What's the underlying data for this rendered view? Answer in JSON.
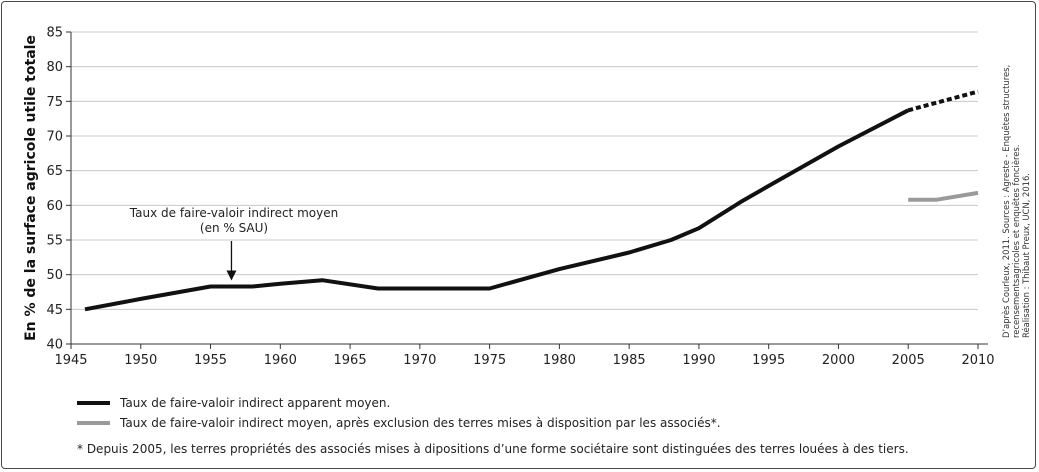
{
  "chart_data": {
    "type": "line",
    "ylabel": "En % de la surface agricole utile totale",
    "xlim": [
      1945,
      2010
    ],
    "ylim": [
      40,
      85
    ],
    "x_ticks": [
      1945,
      1950,
      1955,
      1960,
      1965,
      1970,
      1975,
      1980,
      1985,
      1990,
      1995,
      2000,
      2005,
      2010
    ],
    "y_ticks": [
      40,
      45,
      50,
      55,
      60,
      65,
      70,
      75,
      80,
      85
    ],
    "grid": "horizontal",
    "series": [
      {
        "name": "Taux de faire-valoir indirect apparent moyen.",
        "color": "#111111",
        "points": [
          {
            "x": 1946,
            "y": 45.0
          },
          {
            "x": 1950,
            "y": 46.5
          },
          {
            "x": 1955,
            "y": 48.3
          },
          {
            "x": 1958,
            "y": 48.3
          },
          {
            "x": 1960,
            "y": 48.7
          },
          {
            "x": 1963,
            "y": 49.2
          },
          {
            "x": 1967,
            "y": 48.0
          },
          {
            "x": 1970,
            "y": 48.0
          },
          {
            "x": 1975,
            "y": 48.0
          },
          {
            "x": 1980,
            "y": 50.8
          },
          {
            "x": 1985,
            "y": 53.2
          },
          {
            "x": 1988,
            "y": 55.0
          },
          {
            "x": 1990,
            "y": 56.7
          },
          {
            "x": 1993,
            "y": 60.5
          },
          {
            "x": 1995,
            "y": 62.8
          },
          {
            "x": 2000,
            "y": 68.5
          },
          {
            "x": 2005,
            "y": 73.7
          }
        ],
        "dotted_points": [
          {
            "x": 2005,
            "y": 73.7
          },
          {
            "x": 2010,
            "y": 76.4
          }
        ]
      },
      {
        "name": "Taux de faire-valoir indirect moyen, après exclusion des terres mises à disposition par les associés*.",
        "color": "#9a9a9a",
        "points": [
          {
            "x": 2005,
            "y": 60.8
          },
          {
            "x": 2007,
            "y": 60.8
          },
          {
            "x": 2010,
            "y": 61.8
          }
        ]
      }
    ],
    "annotation": {
      "lines": [
        "Taux de faire-valoir indirect moyen",
        "(en % SAU)"
      ],
      "x": 1956.5,
      "y": 48.3
    },
    "footnote": "* Depuis 2005, les terres propriétés des associés mises à dipositions d’une forme sociétaire sont distinguées des terres louées à des tiers.",
    "source_lines": [
      "D’après Courleux, 2011.  Sources : Agreste - Enquêtes structures,",
      "recensementsagricoles et enquêtes foncières.",
      "Réalisation : Thibaut Preux, UCN, 2016."
    ]
  }
}
